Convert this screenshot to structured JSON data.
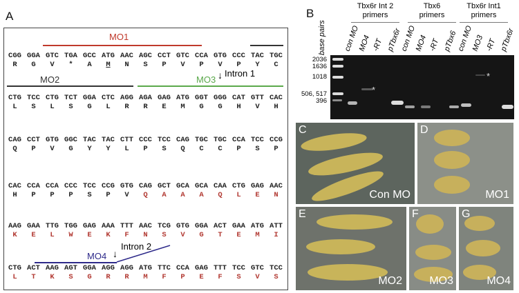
{
  "panel_a": {
    "label": "A",
    "rows": [
      {
        "codons": [
          "CGG",
          "GGA",
          "GTC",
          "TGA",
          "GCC",
          "ATG",
          "AAC",
          "AGC",
          "CCT",
          "GTC",
          "CCA",
          "GTG",
          "CCC",
          "TAC",
          "TGC"
        ],
        "aa": [
          "R",
          "G",
          "V",
          "*",
          "A",
          "M",
          "N",
          "S",
          "P",
          "V",
          "P",
          "V",
          "P",
          "Y",
          "C"
        ],
        "red_from": 15,
        "underline": 5
      },
      {
        "codons": [
          "CTG",
          "TCC",
          "CTG",
          "TCT",
          "GGA",
          "CTC",
          "AGG",
          "AGA",
          "GAG",
          "ATG",
          "GGT",
          "GGG",
          "CAT",
          "GTT",
          "CAC"
        ],
        "aa": [
          "L",
          "S",
          "L",
          "S",
          "G",
          "L",
          "R",
          "R",
          "E",
          "M",
          "G",
          "G",
          "H",
          "V",
          "H"
        ],
        "red_from": 15
      },
      {
        "codons": [
          "CAG",
          "CCT",
          "GTG",
          "GGC",
          "TAC",
          "TAC",
          "CTT",
          "CCC",
          "TCC",
          "CAG",
          "TGC",
          "TGC",
          "CCA",
          "TCC",
          "CCG"
        ],
        "aa": [
          "Q",
          "P",
          "V",
          "G",
          "Y",
          "Y",
          "L",
          "P",
          "S",
          "Q",
          "C",
          "C",
          "P",
          "S",
          "P"
        ],
        "red_from": 15
      },
      {
        "codons": [
          "CAC",
          "CCA",
          "CCA",
          "CCC",
          "TCC",
          "CCG",
          "GTG",
          "CAG",
          "GCT",
          "GCA",
          "GCA",
          "CAA",
          "CTG",
          "GAG",
          "AAC"
        ],
        "aa": [
          "H",
          "P",
          "P",
          "P",
          "S",
          "P",
          "V",
          "Q",
          "A",
          "A",
          "A",
          "Q",
          "L",
          "E",
          "N"
        ],
        "red_from": 7
      },
      {
        "codons": [
          "AAG",
          "GAA",
          "TTG",
          "TGG",
          "GAG",
          "AAA",
          "TTT",
          "AAC",
          "TCG",
          "GTG",
          "GGA",
          "ACT",
          "GAA",
          "ATG",
          "ATT"
        ],
        "aa": [
          "K",
          "E",
          "L",
          "W",
          "E",
          "K",
          "F",
          "N",
          "S",
          "V",
          "G",
          "T",
          "E",
          "M",
          "I"
        ],
        "red_from": 0
      },
      {
        "codons": [
          "CTG",
          "ACT",
          "AAG",
          "AGT",
          "GGA",
          "AGG",
          "AGG",
          "ATG",
          "TTC",
          "CCA",
          "GAG",
          "TTT",
          "TCC",
          "GTC",
          "TCC"
        ],
        "aa": [
          "L",
          "T",
          "K",
          "S",
          "G",
          "R",
          "R",
          "M",
          "F",
          "P",
          "E",
          "F",
          "S",
          "V",
          "S"
        ],
        "red_from": 0
      }
    ],
    "mo1": "MO1",
    "mo2": "MO2",
    "mo3": "MO3",
    "mo4": "MO4",
    "intron1": "Intron 1",
    "intron2": "Intron 2",
    "colors": {
      "mo1": "#c0392b",
      "mo2": "#333333",
      "mo3": "#5aa84a",
      "mo4": "#2e2a8a"
    }
  },
  "panel_b": {
    "label": "B",
    "axis_label": "base pairs",
    "size_markers": [
      "2036",
      "1636",
      "1018",
      "506, 517",
      "396"
    ],
    "groups": [
      {
        "line1": "Tbx6r Int 2",
        "line2": "primers"
      },
      {
        "line1": "Tbx6",
        "line2": "primers"
      },
      {
        "line1": "Tbx6r Int1",
        "line2": "primers"
      }
    ],
    "lanes": [
      "con MO",
      "MO4",
      "-RT",
      "pTbx6r",
      "con MO",
      "MO4",
      "-RT",
      "pTbx6",
      "con MO",
      "MO3",
      "-RT",
      "pTbx6r"
    ],
    "asterisk": "*"
  },
  "panels": [
    {
      "label": "C",
      "caption": "Con MO"
    },
    {
      "label": "D",
      "caption": "MO1"
    },
    {
      "label": "E",
      "caption": "MO2"
    },
    {
      "label": "F",
      "caption": "MO3"
    },
    {
      "label": "G",
      "caption": "MO4"
    }
  ]
}
